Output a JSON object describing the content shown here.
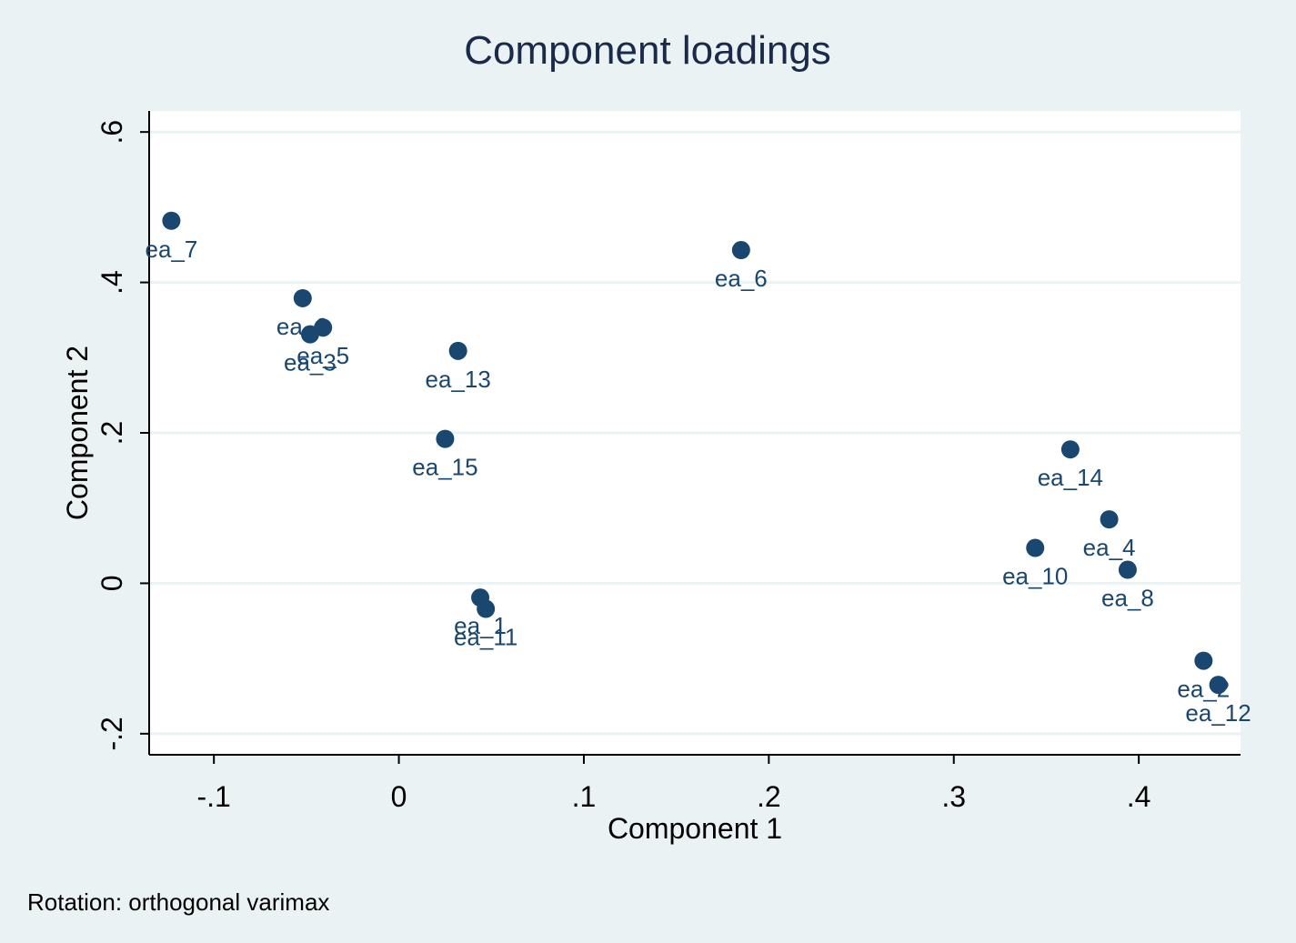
{
  "chart_data": {
    "type": "scatter",
    "title": "Component loadings",
    "xlabel": "Component 1",
    "ylabel": "Component 2",
    "xlim": [
      -0.135,
      0.455
    ],
    "ylim": [
      -0.228,
      0.628
    ],
    "xticks": [
      -0.1,
      0,
      0.1,
      0.2,
      0.3,
      0.4
    ],
    "xtick_labels": [
      "-.1",
      "0",
      ".1",
      ".2",
      ".3",
      ".4"
    ],
    "yticks": [
      -0.2,
      0,
      0.2,
      0.4,
      0.6
    ],
    "ytick_labels": [
      "-.2",
      "0",
      ".2",
      ".4",
      ".6"
    ],
    "grid": "horizontal",
    "marker_color": "#1a476f",
    "grid_color": "#eaf2f3",
    "points": [
      {
        "label": "ea_7",
        "x": -0.123,
        "y": 0.482
      },
      {
        "label": "ea_9",
        "x": -0.052,
        "y": 0.379
      },
      {
        "label": "ea_5",
        "x": -0.041,
        "y": 0.34
      },
      {
        "label": "ea_3",
        "x": -0.048,
        "y": 0.331
      },
      {
        "label": "ea_13",
        "x": 0.032,
        "y": 0.309
      },
      {
        "label": "ea_15",
        "x": 0.025,
        "y": 0.192
      },
      {
        "label": "ea_6",
        "x": 0.185,
        "y": 0.443
      },
      {
        "label": "ea_1",
        "x": 0.044,
        "y": -0.019
      },
      {
        "label": "ea_11",
        "x": 0.047,
        "y": -0.034
      },
      {
        "label": "ea_14",
        "x": 0.363,
        "y": 0.178
      },
      {
        "label": "ea_4",
        "x": 0.384,
        "y": 0.085
      },
      {
        "label": "ea_10",
        "x": 0.344,
        "y": 0.047
      },
      {
        "label": "ea_8",
        "x": 0.394,
        "y": 0.018
      },
      {
        "label": "ea_2",
        "x": 0.435,
        "y": -0.103
      },
      {
        "label": "ea_12",
        "x": 0.443,
        "y": -0.135
      }
    ]
  },
  "note": "Rotation: orthogonal varimax"
}
